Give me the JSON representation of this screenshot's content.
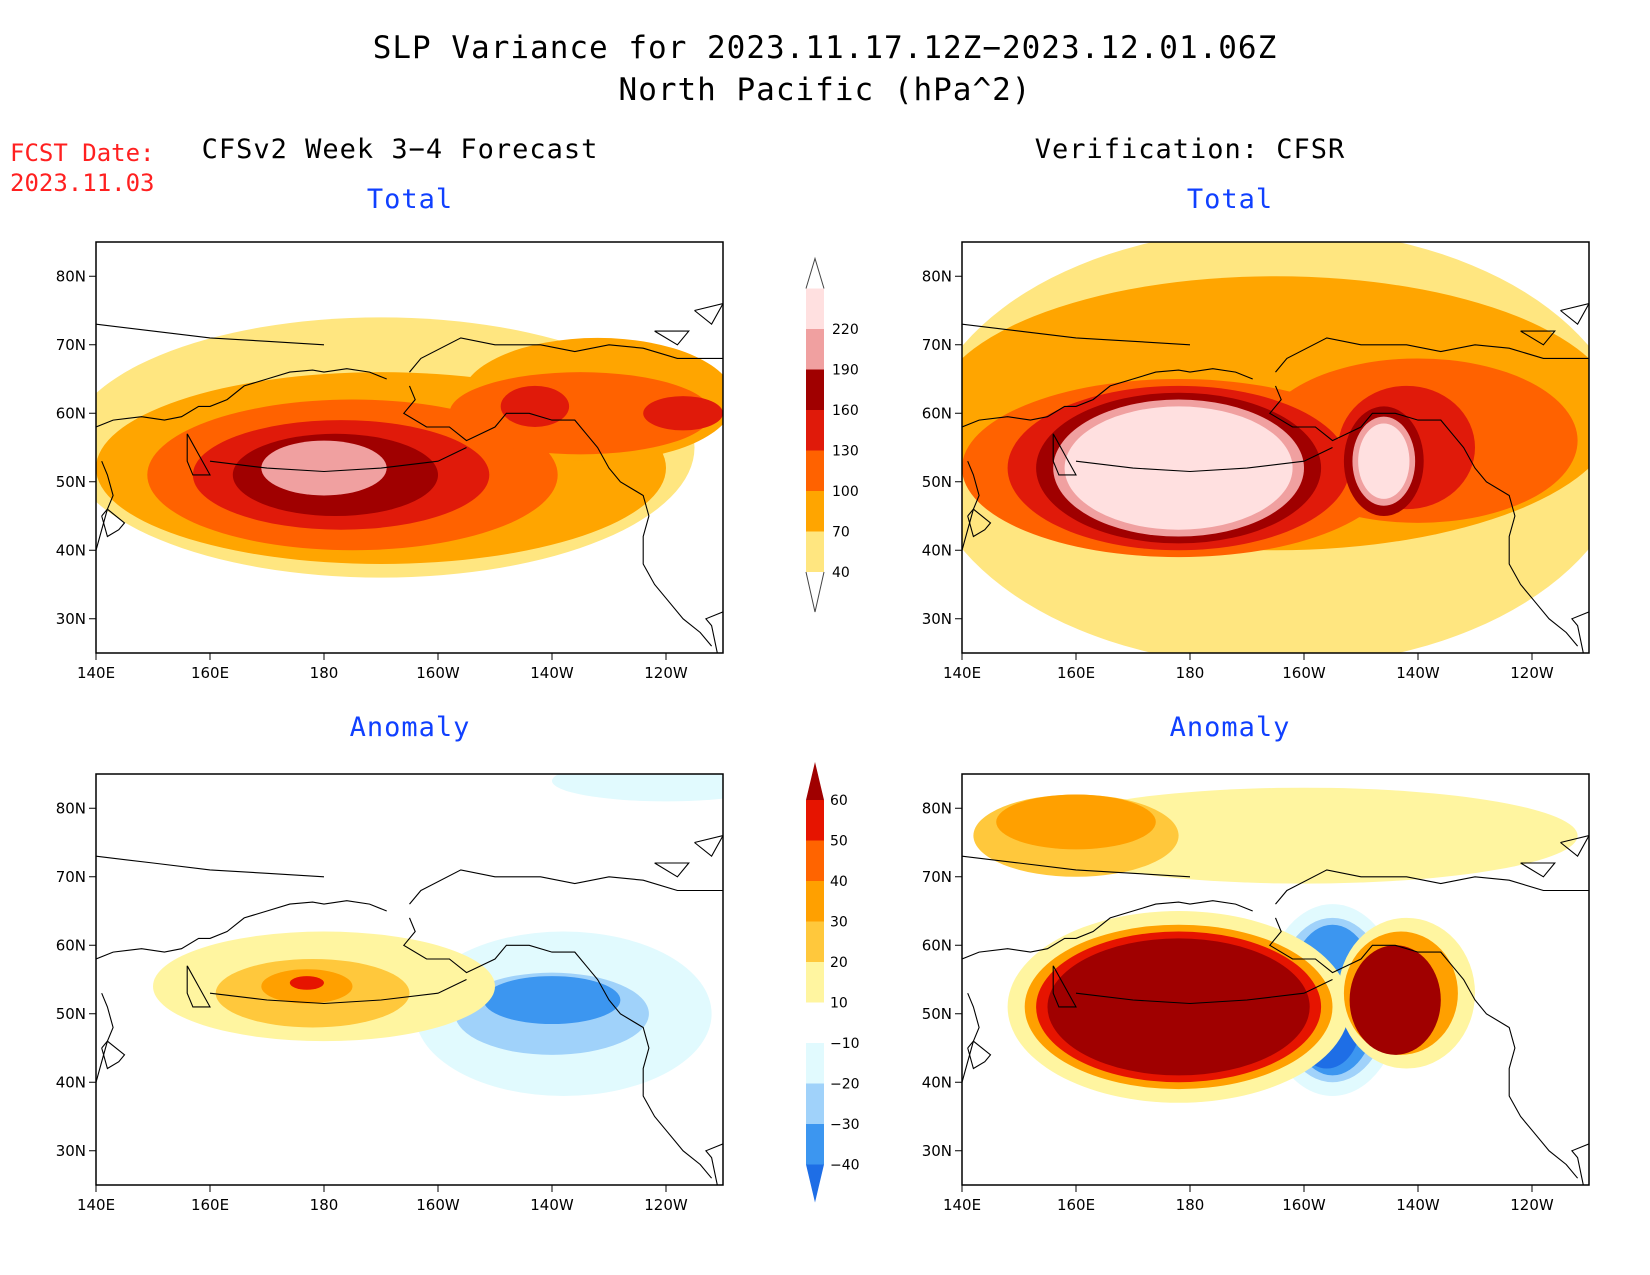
{
  "title": {
    "line1": "SLP Variance for 2023.11.17.12Z−2023.12.01.06Z",
    "line2": "North Pacific (hPa^2)"
  },
  "fcst": {
    "label": "FCST Date:",
    "date": "2023.11.03"
  },
  "headers": {
    "left": "CFSv2 Week 3−4 Forecast",
    "right": "Verification: CFSR"
  },
  "panels": {
    "fcst_total": {
      "label": "Total"
    },
    "verif_total": {
      "label": "Total"
    },
    "fcst_anom": {
      "label": "Anomaly"
    },
    "verif_anom": {
      "label": "Anomaly"
    }
  },
  "axes": {
    "lon_labels": [
      "140E",
      "160E",
      "180",
      "160W",
      "140W",
      "120W"
    ],
    "lat_labels": [
      "80N",
      "70N",
      "60N",
      "50N",
      "40N",
      "30N"
    ]
  },
  "colorbars": {
    "total": {
      "labels": [
        "40",
        "70",
        "100",
        "130",
        "160",
        "190",
        "220"
      ],
      "colors": [
        "#ffe680",
        "#ffa500",
        "#ff6200",
        "#e01a0a",
        "#a00000",
        "#f0a0a0",
        "#ffe0e0"
      ]
    },
    "anomaly": {
      "labels": [
        "−40",
        "−30",
        "−20",
        "−10",
        "10",
        "20",
        "30",
        "40",
        "50",
        "60"
      ],
      "colors": [
        "#1e6ee6",
        "#3c96f0",
        "#a0d2fa",
        "#e1fafe",
        "#ffffff",
        "#fff5a0",
        "#ffc83c",
        "#ffa000",
        "#ff6400",
        "#e61400",
        "#a00000"
      ]
    }
  },
  "map_data": {
    "projection": "cylindrical",
    "lon_range": [
      140,
      250
    ],
    "lat_range": [
      25,
      85
    ],
    "fields": {
      "fcst_total": [
        {
          "level": 40,
          "lon": 190,
          "lat": 55,
          "rx": 55,
          "ry": 19
        },
        {
          "level": 70,
          "lon": 190,
          "lat": 52,
          "rx": 50,
          "ry": 14
        },
        {
          "level": 70,
          "lon": 228,
          "lat": 62,
          "rx": 24,
          "ry": 9
        },
        {
          "level": 100,
          "lon": 185,
          "lat": 51,
          "rx": 36,
          "ry": 11
        },
        {
          "level": 100,
          "lon": 225,
          "lat": 60,
          "rx": 23,
          "ry": 6
        },
        {
          "level": 130,
          "lon": 183,
          "lat": 51,
          "rx": 26,
          "ry": 8
        },
        {
          "level": 130,
          "lon": 217,
          "lat": 61,
          "rx": 6,
          "ry": 3
        },
        {
          "level": 130,
          "lon": 243,
          "lat": 60,
          "rx": 7,
          "ry": 2.5
        },
        {
          "level": 160,
          "lon": 182,
          "lat": 51,
          "rx": 18,
          "ry": 6
        },
        {
          "level": 190,
          "lon": 180,
          "lat": 52,
          "rx": 11,
          "ry": 4
        }
      ],
      "verif_total": [
        {
          "level": 40,
          "lon": 195,
          "lat": 55,
          "rx": 62,
          "ry": 32
        },
        {
          "level": 70,
          "lon": 195,
          "lat": 60,
          "rx": 60,
          "ry": 20
        },
        {
          "level": 100,
          "lon": 220,
          "lat": 56,
          "rx": 28,
          "ry": 12
        },
        {
          "level": 100,
          "lon": 178,
          "lat": 52,
          "rx": 38,
          "ry": 13
        },
        {
          "level": 130,
          "lon": 178,
          "lat": 52,
          "rx": 30,
          "ry": 12
        },
        {
          "level": 130,
          "lon": 218,
          "lat": 55,
          "rx": 12,
          "ry": 9
        },
        {
          "level": 160,
          "lon": 178,
          "lat": 52,
          "rx": 25,
          "ry": 11
        },
        {
          "level": 160,
          "lon": 214,
          "lat": 53,
          "rx": 7,
          "ry": 8
        },
        {
          "level": 190,
          "lon": 178,
          "lat": 52,
          "rx": 22,
          "ry": 10
        },
        {
          "level": 190,
          "lon": 214,
          "lat": 53,
          "rx": 5.5,
          "ry": 6.5
        },
        {
          "level": 220,
          "lon": 178,
          "lat": 52,
          "rx": 20,
          "ry": 9
        },
        {
          "level": 220,
          "lon": 214,
          "lat": 53,
          "rx": 4.5,
          "ry": 5.5
        }
      ],
      "fcst_anom": [
        {
          "level": -10,
          "lon": 222,
          "lat": 50,
          "rx": 26,
          "ry": 12
        },
        {
          "level": -10,
          "lon": 240,
          "lat": 84,
          "rx": 20,
          "ry": 3
        },
        {
          "level": -20,
          "lon": 220,
          "lat": 50,
          "rx": 17,
          "ry": 6
        },
        {
          "level": -30,
          "lon": 220,
          "lat": 52,
          "rx": 12,
          "ry": 3.5
        },
        {
          "level": 10,
          "lon": 180,
          "lat": 54,
          "rx": 30,
          "ry": 8
        },
        {
          "level": 20,
          "lon": 178,
          "lat": 53,
          "rx": 17,
          "ry": 5
        },
        {
          "level": 30,
          "lon": 177,
          "lat": 54,
          "rx": 8,
          "ry": 2.5
        },
        {
          "level": 50,
          "lon": 177,
          "lat": 54.5,
          "rx": 3,
          "ry": 1
        }
      ],
      "verif_anom": [
        {
          "level": -10,
          "lon": 205,
          "lat": 52,
          "rx": 12,
          "ry": 14
        },
        {
          "level": -20,
          "lon": 205,
          "lat": 52,
          "rx": 10,
          "ry": 12
        },
        {
          "level": -30,
          "lon": 205,
          "lat": 52,
          "rx": 8,
          "ry": 11
        },
        {
          "level": -40,
          "lon": 204,
          "lat": 49,
          "rx": 6,
          "ry": 7
        },
        {
          "level": 10,
          "lon": 200,
          "lat": 76,
          "rx": 48,
          "ry": 7
        },
        {
          "level": 20,
          "lon": 160,
          "lat": 76,
          "rx": 18,
          "ry": 6
        },
        {
          "level": 30,
          "lon": 160,
          "lat": 78,
          "rx": 14,
          "ry": 4
        },
        {
          "level": 10,
          "lon": 178,
          "lat": 51,
          "rx": 30,
          "ry": 14
        },
        {
          "level": 30,
          "lon": 178,
          "lat": 51,
          "rx": 27,
          "ry": 12
        },
        {
          "level": 50,
          "lon": 178,
          "lat": 51,
          "rx": 25,
          "ry": 11
        },
        {
          "level": 60,
          "lon": 178,
          "lat": 51,
          "rx": 23,
          "ry": 10
        },
        {
          "level": 10,
          "lon": 218,
          "lat": 53,
          "rx": 12,
          "ry": 11
        },
        {
          "level": 30,
          "lon": 217,
          "lat": 53,
          "rx": 10,
          "ry": 9
        },
        {
          "level": 60,
          "lon": 216,
          "lat": 52,
          "rx": 8,
          "ry": 8
        }
      ]
    }
  }
}
